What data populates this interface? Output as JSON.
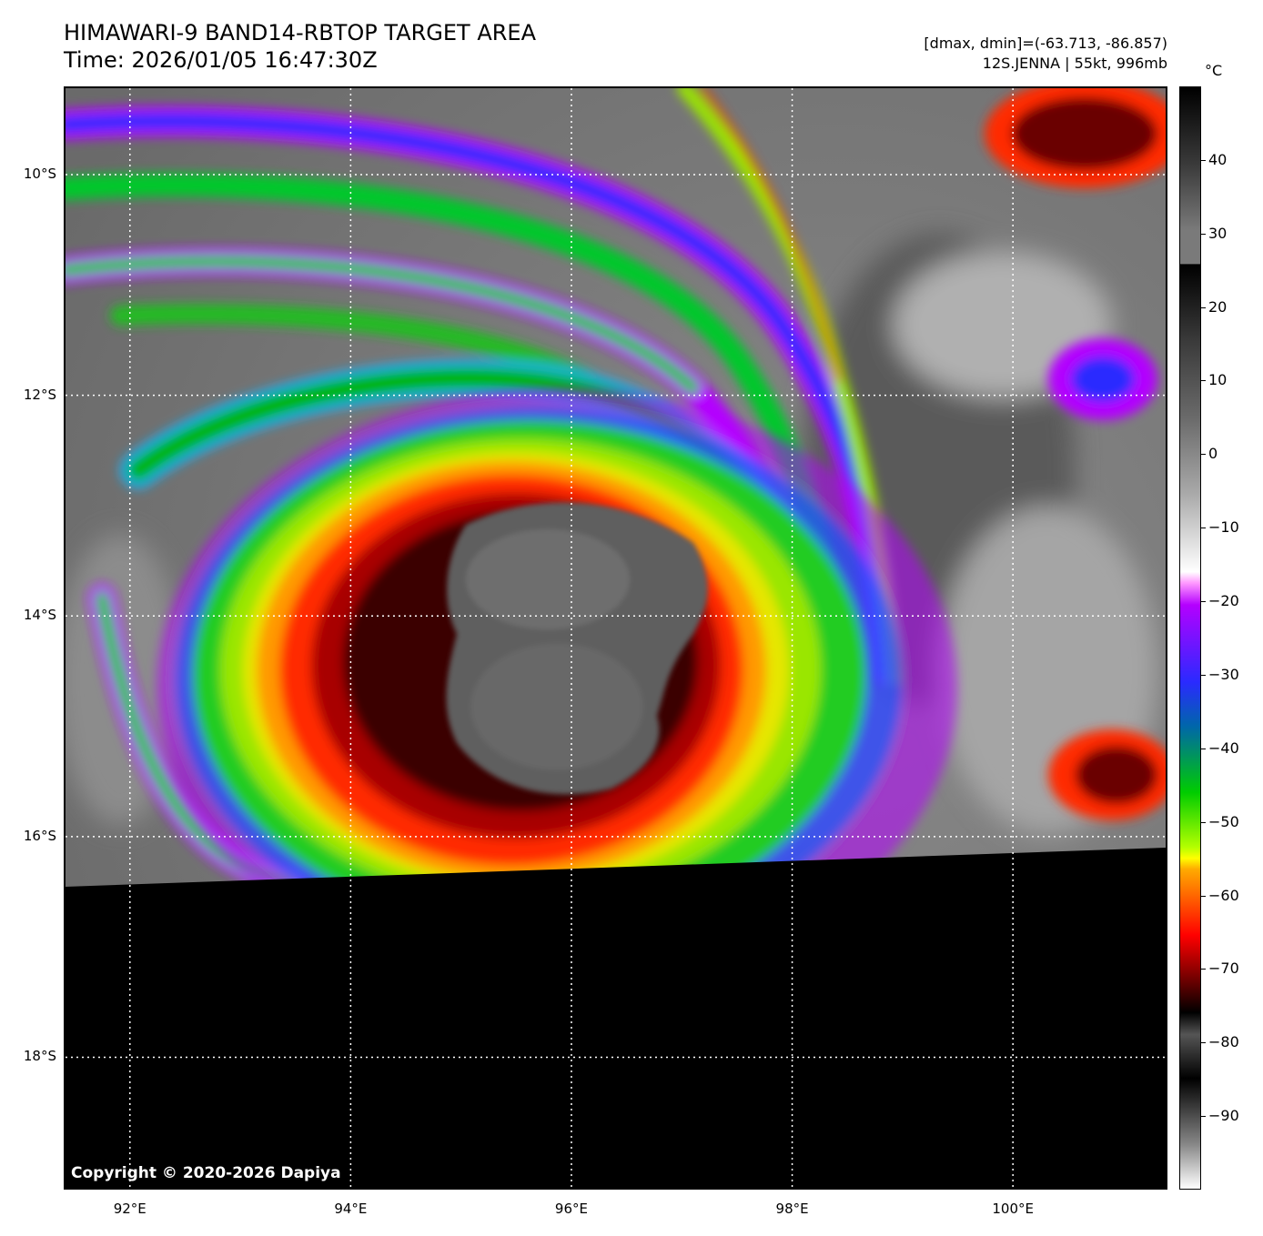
{
  "header": {
    "title": "HIMAWARI-9 BAND14-RBTOP TARGET AREA",
    "time": "Time: 2026/01/05 16:47:30Z",
    "dminmax": "[dmax, dmin]=(-63.713, -86.857)",
    "storm": "12S.JENNA | 55kt, 996mb"
  },
  "map": {
    "copyright": "Copyright © 2020-2026 Dapiya",
    "lat_labels": [
      "10°S",
      "12°S",
      "14°S",
      "16°S",
      "18°S"
    ],
    "lon_labels": [
      "92°E",
      "94°E",
      "96°E",
      "98°E",
      "100°E"
    ],
    "lat_values": [
      -10,
      -12,
      -14,
      -16,
      -18
    ],
    "lon_values": [
      92,
      94,
      96,
      98,
      100
    ],
    "lat_range": [
      -19.2,
      -9.2
    ],
    "lon_range": [
      91.4,
      101.4
    ],
    "eye_center": {
      "lon": 96.0,
      "lat": -13.9
    },
    "gridlines": "dotted white"
  },
  "colorbar": {
    "unit": "°C",
    "ticks": [
      "40",
      "30",
      "20",
      "10",
      "0",
      "−10",
      "−20",
      "−30",
      "−40",
      "−50",
      "−60",
      "−70",
      "−80",
      "−90"
    ],
    "tick_values": [
      40,
      30,
      20,
      10,
      0,
      -10,
      -20,
      -30,
      -40,
      -50,
      -60,
      -70,
      -80,
      -90
    ],
    "range": [
      -100,
      50
    ]
  }
}
